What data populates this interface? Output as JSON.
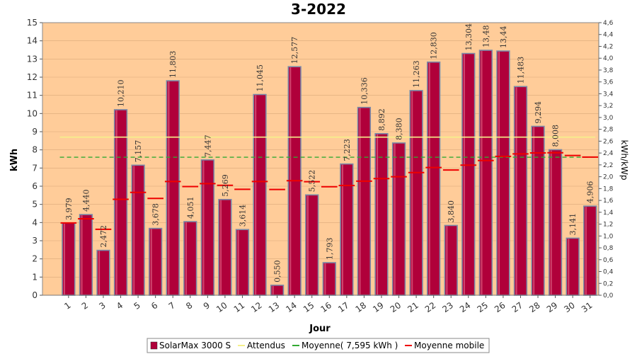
{
  "chart_data": {
    "type": "bar",
    "title": "3-2022",
    "xlabel": "Jour",
    "ylabel": "kWh",
    "ylabel_right": "kWh/kWp",
    "ylim": [
      0,
      15
    ],
    "ylim_right": [
      0,
      4.6
    ],
    "yticks": [
      "0",
      "1",
      "2",
      "3",
      "4",
      "5",
      "6",
      "7",
      "8",
      "9",
      "10",
      "11",
      "12",
      "13",
      "14",
      "15"
    ],
    "yticks_right": [
      "0,0",
      "0,2",
      "0,4",
      "0,6",
      "0,8",
      "1,0",
      "1,2",
      "1,4",
      "1,6",
      "1,8",
      "2,0",
      "2,2",
      "2,4",
      "2,6",
      "2,8",
      "3,0",
      "3,2",
      "3,4",
      "3,6",
      "3,8",
      "4,0",
      "4,2",
      "4,4",
      "4,6"
    ],
    "categories": [
      "1",
      "2",
      "3",
      "4",
      "5",
      "6",
      "7",
      "8",
      "9",
      "10",
      "11",
      "12",
      "13",
      "14",
      "15",
      "16",
      "17",
      "18",
      "19",
      "20",
      "21",
      "22",
      "23",
      "24",
      "25",
      "26",
      "27",
      "28",
      "29",
      "30",
      "31"
    ],
    "series": [
      {
        "name": "SolarMax 3000 S",
        "type": "bar",
        "values": [
          3.979,
          4.44,
          2.472,
          10.21,
          7.157,
          3.678,
          11.803,
          4.051,
          7.447,
          5.269,
          3.614,
          11.045,
          0.55,
          12.577,
          5.522,
          1.793,
          7.223,
          10.336,
          8.892,
          8.38,
          11.263,
          12.83,
          3.84,
          13.304,
          13.48,
          13.44,
          11.483,
          9.294,
          8.008,
          3.141,
          4.906
        ],
        "labels": [
          "3,979",
          "4,440",
          "2,472",
          "10,210",
          "7,157",
          "3,678",
          "11,803",
          "4,051",
          "7,447",
          "5,269",
          "3,614",
          "11,045",
          "0,550",
          "12,577",
          "5,522",
          "1,793",
          "7,223",
          "10,336",
          "8,892",
          "8,380",
          "11,263",
          "12,830",
          "3,840",
          "13,304",
          "13,48",
          "13,44",
          "11,483",
          "9,294",
          "8,008",
          "3,141",
          "4,906"
        ]
      },
      {
        "name": "Attendus",
        "type": "hline",
        "value": 8.7
      },
      {
        "name": "Moyenne( 7,595 kWh )",
        "type": "hline",
        "value": 7.595
      },
      {
        "name": "Moyenne mobile",
        "type": "step",
        "values": [
          3.98,
          4.21,
          3.63,
          5.28,
          5.66,
          5.33,
          6.26,
          5.98,
          6.14,
          6.05,
          5.83,
          6.26,
          5.82,
          6.3,
          6.25,
          5.97,
          6.04,
          6.28,
          6.42,
          6.52,
          6.75,
          7.03,
          6.89,
          7.16,
          7.41,
          7.64,
          7.78,
          7.83,
          7.84,
          7.69,
          7.6
        ]
      }
    ],
    "colors": {
      "bar": "#b0003a",
      "attendus": "#f5f08a",
      "moyenne": "#33aa33",
      "mobile": "#ee0000",
      "plot_bg": "#ffcc99"
    },
    "grid": true,
    "legend_position": "bottom"
  }
}
